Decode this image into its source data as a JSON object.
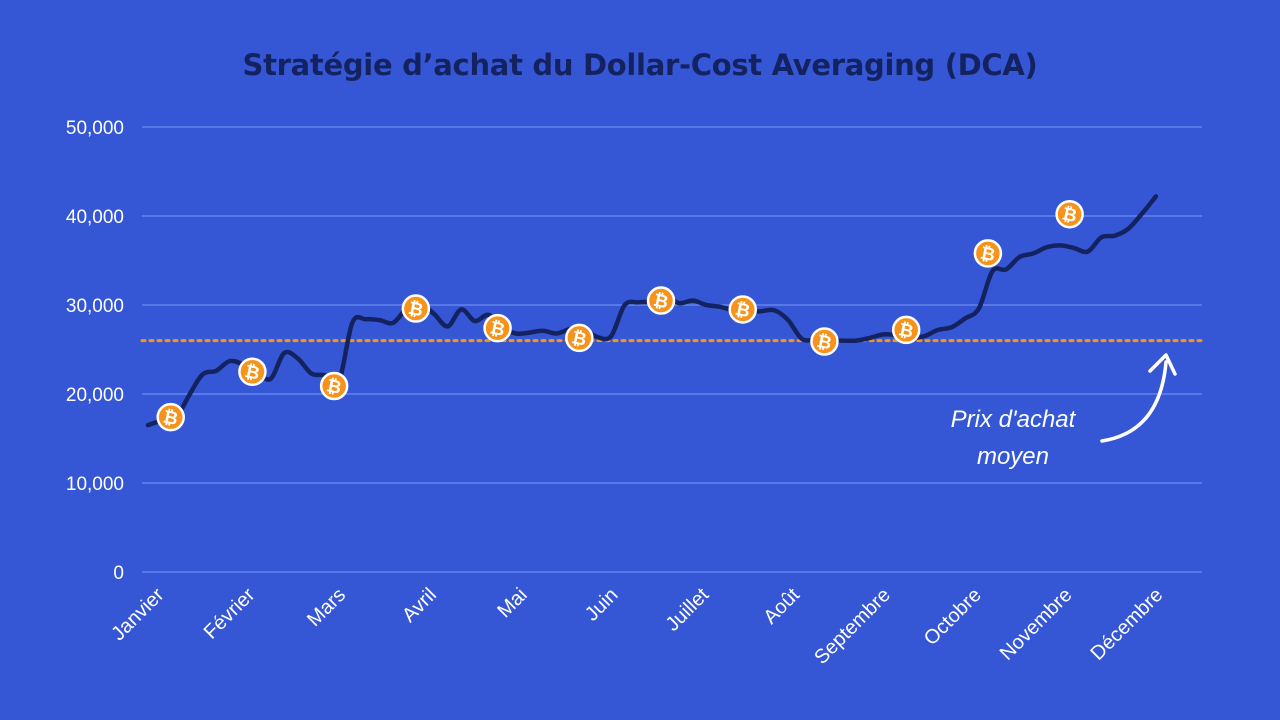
{
  "chart_data": {
    "type": "line",
    "title": "Stratégie d’achat du Dollar-Cost Averaging (DCA)",
    "categories": [
      "Janvier",
      "Février",
      "Mars",
      "Avril",
      "Mai",
      "Juin",
      "Juillet",
      "Août",
      "Septembre",
      "Octobre",
      "Novembre",
      "Décembre"
    ],
    "ylim": [
      0,
      50000
    ],
    "yticks": [
      0,
      10000,
      20000,
      30000,
      40000,
      50000
    ],
    "ytick_labels": [
      "0",
      "10,000",
      "20,000",
      "30,000",
      "40,000",
      "50,000"
    ],
    "grid": true,
    "series": [
      {
        "points": [
          [
            0.0,
            16500
          ],
          [
            0.15,
            17000
          ],
          [
            0.3,
            17200
          ],
          [
            0.45,
            19800
          ],
          [
            0.6,
            22200
          ],
          [
            0.75,
            22600
          ],
          [
            0.9,
            23700
          ],
          [
            1.05,
            23300
          ],
          [
            1.2,
            22500
          ],
          [
            1.35,
            21700
          ],
          [
            1.5,
            24600
          ],
          [
            1.65,
            24000
          ],
          [
            1.8,
            22300
          ],
          [
            1.95,
            22100
          ],
          [
            2.1,
            21300
          ],
          [
            2.25,
            28000
          ],
          [
            2.4,
            28400
          ],
          [
            2.55,
            28300
          ],
          [
            2.7,
            28000
          ],
          [
            2.85,
            29600
          ],
          [
            3.0,
            30100
          ],
          [
            3.15,
            29000
          ],
          [
            3.3,
            27600
          ],
          [
            3.45,
            29500
          ],
          [
            3.6,
            28200
          ],
          [
            3.75,
            28900
          ],
          [
            3.9,
            27500
          ],
          [
            4.05,
            26800
          ],
          [
            4.2,
            26900
          ],
          [
            4.35,
            27100
          ],
          [
            4.5,
            26800
          ],
          [
            4.65,
            27300
          ],
          [
            4.8,
            27300
          ],
          [
            4.95,
            26400
          ],
          [
            5.1,
            26500
          ],
          [
            5.25,
            30000
          ],
          [
            5.4,
            30300
          ],
          [
            5.55,
            30400
          ],
          [
            5.7,
            31000
          ],
          [
            5.85,
            30200
          ],
          [
            6.0,
            30500
          ],
          [
            6.15,
            30000
          ],
          [
            6.3,
            29800
          ],
          [
            6.45,
            29400
          ],
          [
            6.6,
            29200
          ],
          [
            6.75,
            29300
          ],
          [
            6.9,
            29400
          ],
          [
            7.05,
            28300
          ],
          [
            7.2,
            26200
          ],
          [
            7.35,
            26100
          ],
          [
            7.5,
            26000
          ],
          [
            7.65,
            26000
          ],
          [
            7.8,
            26000
          ],
          [
            7.95,
            26300
          ],
          [
            8.1,
            26700
          ],
          [
            8.25,
            26600
          ],
          [
            8.4,
            26300
          ],
          [
            8.55,
            26500
          ],
          [
            8.7,
            27200
          ],
          [
            8.85,
            27500
          ],
          [
            9.0,
            28500
          ],
          [
            9.15,
            29600
          ],
          [
            9.3,
            33800
          ],
          [
            9.45,
            34000
          ],
          [
            9.6,
            35400
          ],
          [
            9.75,
            35800
          ],
          [
            9.9,
            36500
          ],
          [
            10.05,
            36700
          ],
          [
            10.2,
            36400
          ],
          [
            10.35,
            36000
          ],
          [
            10.5,
            37600
          ],
          [
            10.65,
            37800
          ],
          [
            10.8,
            38600
          ],
          [
            10.95,
            40300
          ],
          [
            11.1,
            42200
          ]
        ],
        "color": "#14235f"
      }
    ],
    "purchases": [
      {
        "x": 0.25,
        "y": 17400
      },
      {
        "x": 1.15,
        "y": 22500
      },
      {
        "x": 2.05,
        "y": 20900
      },
      {
        "x": 2.95,
        "y": 29600
      },
      {
        "x": 3.85,
        "y": 27400
      },
      {
        "x": 4.75,
        "y": 26300
      },
      {
        "x": 5.65,
        "y": 30500
      },
      {
        "x": 6.55,
        "y": 29500
      },
      {
        "x": 7.45,
        "y": 25900
      },
      {
        "x": 8.35,
        "y": 27200
      },
      {
        "x": 9.25,
        "y": 35800
      },
      {
        "x": 10.15,
        "y": 40200
      }
    ],
    "average_price": 26000,
    "annotation": {
      "line1": "Prix d'achat",
      "line2": "moyen"
    },
    "colors": {
      "background": "#3557d6",
      "line": "#14235f",
      "gridline": "#6e8cf0",
      "average_line": "#f7931a",
      "coin": "#f7931a",
      "text": "#ffffff",
      "title": "#14235f"
    },
    "coin_icon": "bitcoin-icon"
  }
}
